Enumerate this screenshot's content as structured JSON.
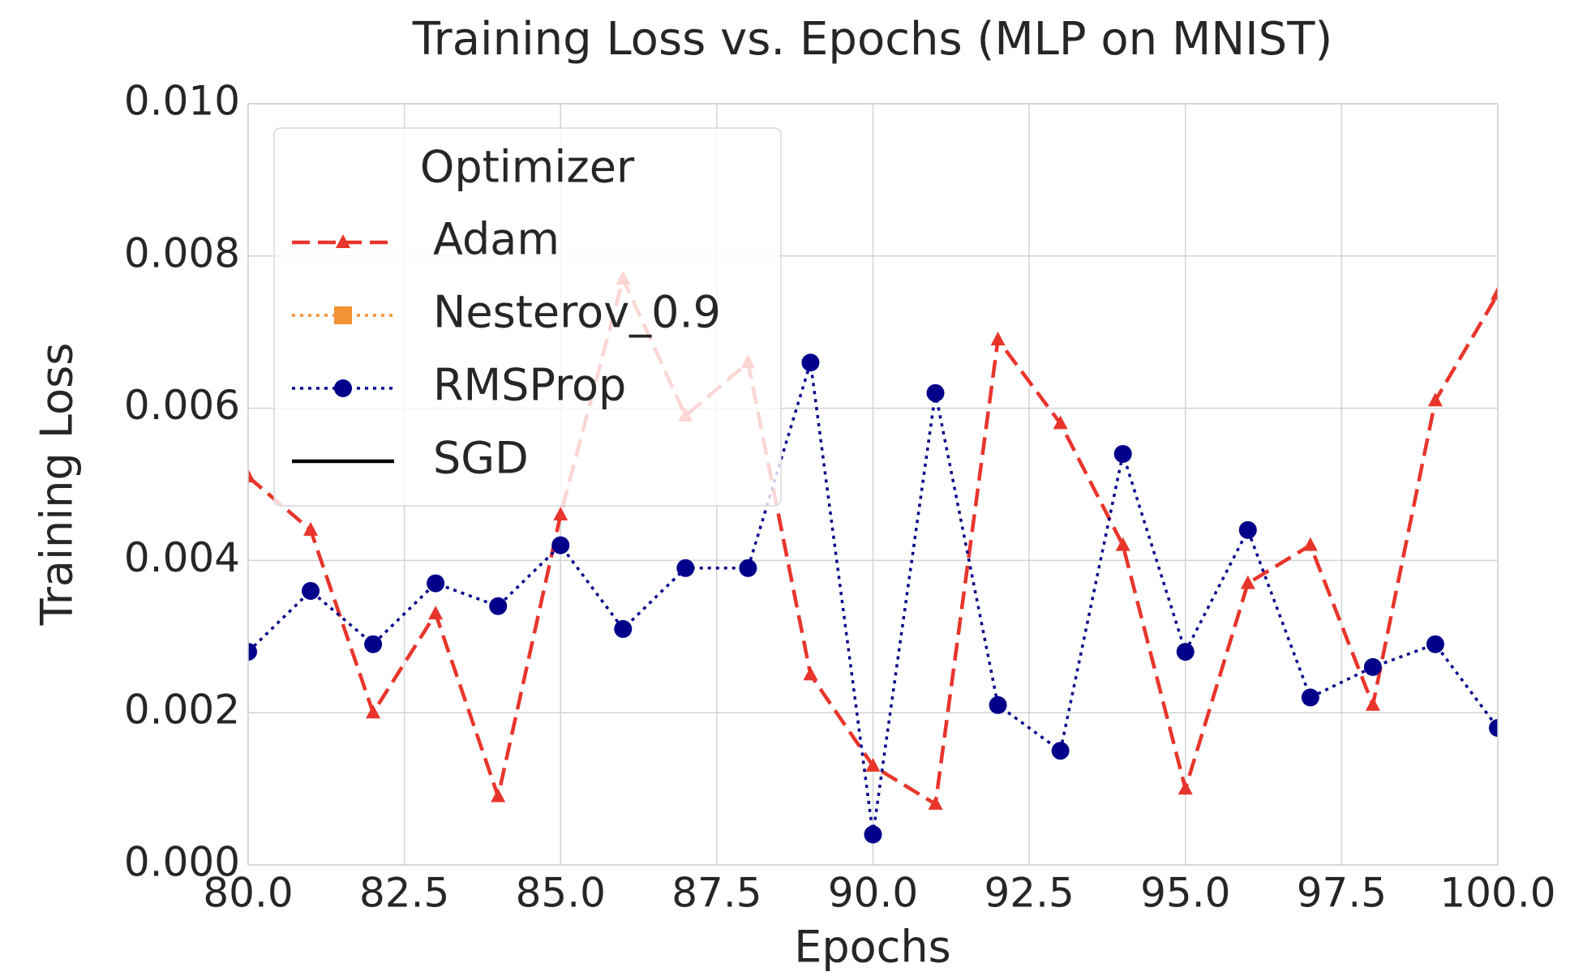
{
  "chart_data": {
    "type": "line",
    "title": "Training Loss vs. Epochs (MLP on MNIST)",
    "x_label": "Epochs",
    "y_label": "Training Loss",
    "x": [
      80,
      81,
      82,
      83,
      84,
      85,
      86,
      87,
      88,
      89,
      90,
      91,
      92,
      93,
      94,
      95,
      96,
      97,
      98,
      99,
      100
    ],
    "series": [
      {
        "name": "Adam",
        "color": "#e8352b",
        "linestyle": "dashed",
        "marker": "triangle",
        "values": [
          0.0051,
          0.0044,
          0.002,
          0.0033,
          0.0009,
          0.0046,
          0.0077,
          0.0059,
          0.0066,
          0.0025,
          0.0013,
          0.0008,
          0.0069,
          0.0058,
          0.0042,
          0.001,
          0.0037,
          0.0042,
          0.0021,
          0.0061,
          0.0075
        ]
      },
      {
        "name": "Nesterov_0.9",
        "color": "#f39236",
        "linestyle": "dotted",
        "marker": "square",
        "values": [
          null,
          null,
          null,
          null,
          null,
          null,
          null,
          null,
          null,
          null,
          null,
          null,
          null,
          null,
          null,
          null,
          null,
          null,
          null,
          null,
          null
        ]
      },
      {
        "name": "RMSProp",
        "color": "#00008b",
        "linestyle": "dotted",
        "marker": "circle",
        "values": [
          0.0028,
          0.0036,
          0.0029,
          0.0037,
          0.0034,
          0.0042,
          0.0031,
          0.0039,
          0.0039,
          0.0066,
          0.0004,
          0.0062,
          0.0021,
          0.0015,
          0.0054,
          0.0028,
          0.0044,
          0.0022,
          0.0026,
          0.0029,
          0.0018
        ]
      },
      {
        "name": "SGD",
        "color": "#000000",
        "linestyle": "solid",
        "marker": "none",
        "values": [
          null,
          null,
          null,
          null,
          null,
          null,
          null,
          null,
          null,
          null,
          null,
          null,
          null,
          null,
          null,
          null,
          null,
          null,
          null,
          null,
          null
        ]
      }
    ],
    "xlim": [
      80,
      100
    ],
    "xticks": [
      {
        "value": 80,
        "label": "80.0"
      },
      {
        "value": 82.5,
        "label": "82.5"
      },
      {
        "value": 85,
        "label": "85.0"
      },
      {
        "value": 87.5,
        "label": "87.5"
      },
      {
        "value": 90,
        "label": "90.0"
      },
      {
        "value": 92.5,
        "label": "92.5"
      },
      {
        "value": 95,
        "label": "95.0"
      },
      {
        "value": 97.5,
        "label": "97.5"
      },
      {
        "value": 100,
        "label": "100.0"
      }
    ],
    "ylim": [
      0,
      0.01
    ],
    "yticks": [
      {
        "value": 0,
        "label": "0.000"
      },
      {
        "value": 0.002,
        "label": "0.002"
      },
      {
        "value": 0.004,
        "label": "0.004"
      },
      {
        "value": 0.006,
        "label": "0.006"
      },
      {
        "value": 0.008,
        "label": "0.008"
      },
      {
        "value": 0.01,
        "label": "0.010"
      }
    ],
    "grid": true,
    "legend_title": "Optimizer",
    "legend_position": "upper left"
  }
}
